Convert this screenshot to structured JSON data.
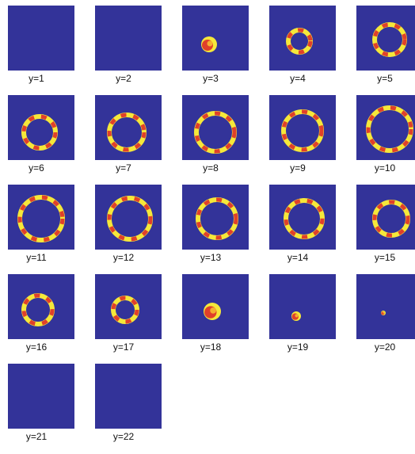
{
  "panels": [
    "y=1",
    "y=2",
    "y=3",
    "y=4",
    "y=5",
    "y=6",
    "y=7",
    "y=8",
    "y=9",
    "y=10",
    "y=11",
    "y=12",
    "y=13",
    "y=14",
    "y=15",
    "y=16",
    "y=17",
    "y=18",
    "y=19",
    "y=20",
    "y=21",
    "y=22"
  ]
}
